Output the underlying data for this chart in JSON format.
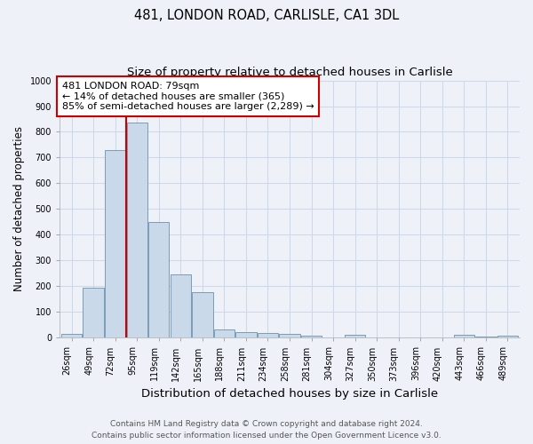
{
  "title1": "481, LONDON ROAD, CARLISLE, CA1 3DL",
  "title2": "Size of property relative to detached houses in Carlisle",
  "xlabel": "Distribution of detached houses by size in Carlisle",
  "ylabel": "Number of detached properties",
  "categories": [
    "26sqm",
    "49sqm",
    "72sqm",
    "95sqm",
    "119sqm",
    "142sqm",
    "165sqm",
    "188sqm",
    "211sqm",
    "234sqm",
    "258sqm",
    "281sqm",
    "304sqm",
    "327sqm",
    "350sqm",
    "373sqm",
    "396sqm",
    "420sqm",
    "443sqm",
    "466sqm",
    "489sqm"
  ],
  "values": [
    15,
    195,
    730,
    835,
    450,
    245,
    178,
    33,
    22,
    18,
    13,
    7,
    0,
    10,
    0,
    0,
    0,
    0,
    10,
    5,
    8
  ],
  "bar_color": "#c9d9ea",
  "bar_edge_color": "#7a9cb8",
  "red_line_x": 2.5,
  "annotation_line1": "481 LONDON ROAD: 79sqm",
  "annotation_line2": "← 14% of detached houses are smaller (365)",
  "annotation_line3": "85% of semi-detached houses are larger (2,289) →",
  "annotation_box_color": "#ffffff",
  "annotation_box_edge": "#cc0000",
  "red_line_color": "#cc0000",
  "ylim": [
    0,
    1000
  ],
  "yticks": [
    0,
    100,
    200,
    300,
    400,
    500,
    600,
    700,
    800,
    900,
    1000
  ],
  "grid_color": "#cdd8ea",
  "bg_color": "#eef2f8",
  "footer1": "Contains HM Land Registry data © Crown copyright and database right 2024.",
  "footer2": "Contains public sector information licensed under the Open Government Licence v3.0.",
  "title_fontsize": 10.5,
  "subtitle_fontsize": 9.5,
  "tick_fontsize": 7,
  "ylabel_fontsize": 8.5,
  "xlabel_fontsize": 9.5,
  "footer_fontsize": 6.5,
  "annot_fontsize": 8
}
